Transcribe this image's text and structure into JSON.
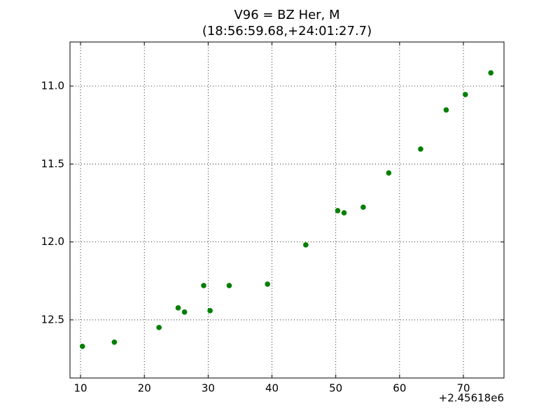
{
  "chart_data": {
    "type": "scatter",
    "title": "V96 = BZ Her, M",
    "subtitle": "(18:56:59.68,+24:01:27.7)",
    "x_offset_label": "+2.45618e6",
    "x": [
      10.3,
      15.3,
      22.3,
      25.3,
      26.3,
      29.3,
      30.3,
      33.3,
      39.3,
      45.3,
      50.3,
      51.3,
      54.3,
      58.3,
      63.3,
      67.3,
      70.3,
      74.3
    ],
    "values": [
      12.67,
      12.643,
      12.549,
      12.423,
      12.45,
      12.28,
      12.441,
      12.28,
      12.271,
      12.019,
      11.799,
      11.813,
      11.777,
      11.557,
      11.404,
      11.153,
      11.054,
      10.915
    ],
    "color": "#007f00",
    "xlim": [
      8.35,
      76.36
    ],
    "xticks": [
      10,
      20,
      30,
      40,
      50,
      60,
      70
    ],
    "ylim": [
      12.873,
      10.717
    ],
    "yticks": [
      {
        "value": 11,
        "label": "11.0"
      },
      11.5,
      {
        "value": 12,
        "label": "12.0"
      },
      12.5
    ],
    "grid": true
  }
}
